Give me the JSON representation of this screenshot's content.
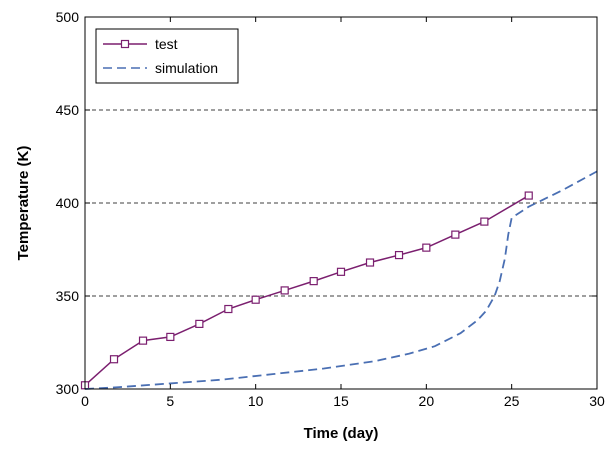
{
  "chart_data": {
    "type": "line",
    "title": "",
    "xlabel": "Time (day)",
    "ylabel": "Temperature (K)",
    "xlim": [
      0,
      30
    ],
    "ylim": [
      300,
      500
    ],
    "xticks": [
      0,
      5,
      10,
      15,
      20,
      25,
      30
    ],
    "yticks": [
      300,
      350,
      400,
      450,
      500
    ],
    "grid": {
      "horizontal_dashed_at": [
        350,
        400,
        450
      ],
      "vertical": false
    },
    "legend_position": "top-left",
    "series": [
      {
        "name": "test",
        "style": "solid line with square markers",
        "color": "#7b1f6f",
        "x": [
          0,
          1.7,
          3.4,
          5.0,
          6.7,
          8.4,
          10.0,
          11.7,
          13.4,
          15.0,
          16.7,
          18.4,
          20.0,
          21.7,
          23.4,
          26.0
        ],
        "y": [
          302,
          316,
          326,
          328,
          335,
          343,
          348,
          353,
          358,
          363,
          368,
          372,
          376,
          383,
          390,
          404
        ]
      },
      {
        "name": "simulation",
        "style": "dashed line",
        "color": "#4a6fb3",
        "x": [
          0,
          2,
          5,
          8,
          11,
          14,
          17,
          19,
          20.5,
          22,
          23,
          23.5,
          24,
          24.3,
          24.6,
          24.8,
          25,
          26,
          28,
          30
        ],
        "y": [
          300,
          301,
          303,
          305,
          308,
          311,
          315,
          319,
          323,
          330,
          337,
          342,
          350,
          358,
          370,
          383,
          392,
          398,
          407,
          417
        ]
      }
    ]
  }
}
